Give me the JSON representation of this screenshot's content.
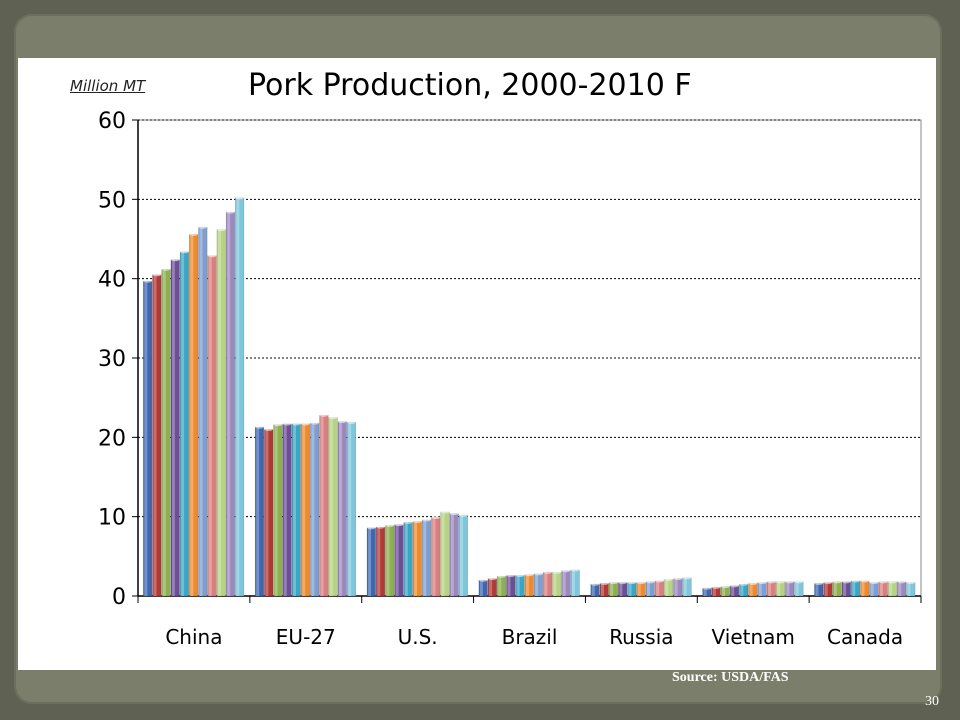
{
  "slide": {
    "page_number": "30",
    "source": "Source:  USDA/FAS"
  },
  "chart_data": {
    "type": "bar",
    "title": "Pork Production, 2000-2010 F",
    "ylabel": "Million MT",
    "xlabel": "",
    "ylim": [
      0,
      60
    ],
    "yticks": [
      "0",
      "10",
      "20",
      "30",
      "40",
      "50",
      "60"
    ],
    "grid": true,
    "categories": [
      "China",
      "EU-27",
      "U.S.",
      "Brazil",
      "Russia",
      "Vietnam",
      "Canada"
    ],
    "series": [
      {
        "color": "#3e67b0",
        "values": [
          39.7,
          21.3,
          8.6,
          2.0,
          1.5,
          1.0,
          1.6
        ]
      },
      {
        "color": "#b03a36",
        "values": [
          40.5,
          21.0,
          8.7,
          2.2,
          1.6,
          1.1,
          1.7
        ]
      },
      {
        "color": "#8db051",
        "values": [
          41.2,
          21.6,
          8.9,
          2.5,
          1.7,
          1.2,
          1.8
        ]
      },
      {
        "color": "#6c4e96",
        "values": [
          42.4,
          21.7,
          9.0,
          2.6,
          1.7,
          1.3,
          1.8
        ]
      },
      {
        "color": "#3aa5c4",
        "values": [
          43.4,
          21.7,
          9.3,
          2.6,
          1.7,
          1.5,
          1.9
        ]
      },
      {
        "color": "#ee8a2e",
        "values": [
          45.6,
          21.7,
          9.4,
          2.7,
          1.7,
          1.6,
          1.9
        ]
      },
      {
        "color": "#7e9ed1",
        "values": [
          46.5,
          21.8,
          9.6,
          2.8,
          1.8,
          1.7,
          1.7
        ]
      },
      {
        "color": "#d8807f",
        "values": [
          42.9,
          22.8,
          9.9,
          3.0,
          1.9,
          1.8,
          1.8
        ]
      },
      {
        "color": "#b6d284",
        "values": [
          46.2,
          22.5,
          10.6,
          3.0,
          2.1,
          1.8,
          1.8
        ]
      },
      {
        "color": "#9b89be",
        "values": [
          48.4,
          22.0,
          10.4,
          3.2,
          2.2,
          1.8,
          1.8
        ]
      },
      {
        "color": "#7dc6dc",
        "values": [
          50.2,
          21.9,
          10.2,
          3.3,
          2.3,
          1.8,
          1.7
        ]
      }
    ]
  }
}
